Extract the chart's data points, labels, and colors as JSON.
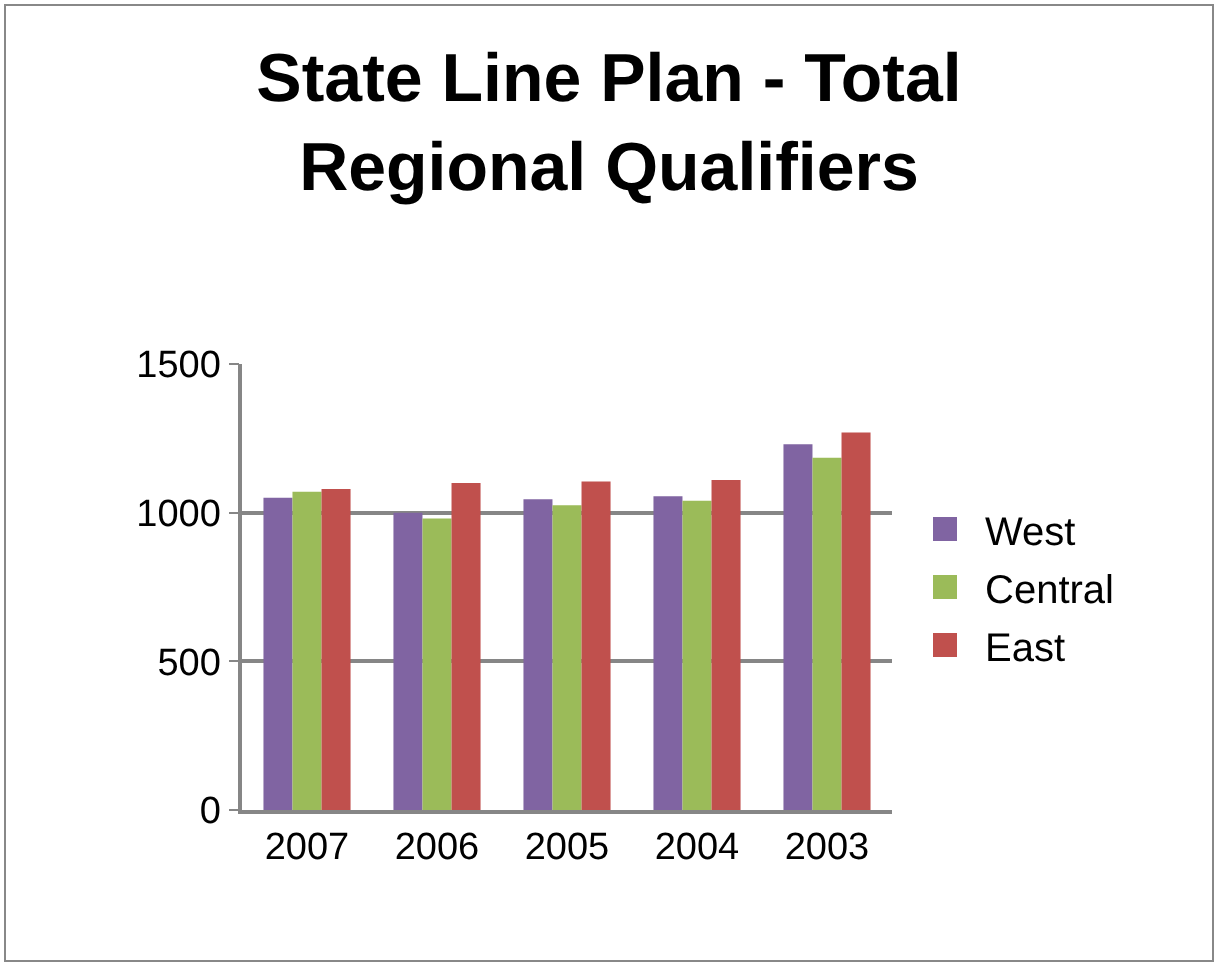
{
  "chart_data": {
    "type": "bar",
    "title": "State Line Plan - Total Regional Qualifiers",
    "categories": [
      "2007",
      "2006",
      "2005",
      "2004",
      "2003"
    ],
    "series": [
      {
        "name": "West",
        "color": "#8064a2",
        "values": [
          1050,
          1000,
          1045,
          1055,
          1230
        ]
      },
      {
        "name": "Central",
        "color": "#9bbb59",
        "values": [
          1070,
          980,
          1025,
          1040,
          1185
        ]
      },
      {
        "name": "East",
        "color": "#c0504d",
        "values": [
          1080,
          1100,
          1105,
          1110,
          1270
        ]
      }
    ],
    "ylim": [
      0,
      1500
    ],
    "yticks": [
      0,
      500,
      1000,
      1500
    ],
    "grid": "y",
    "legend": "right"
  }
}
